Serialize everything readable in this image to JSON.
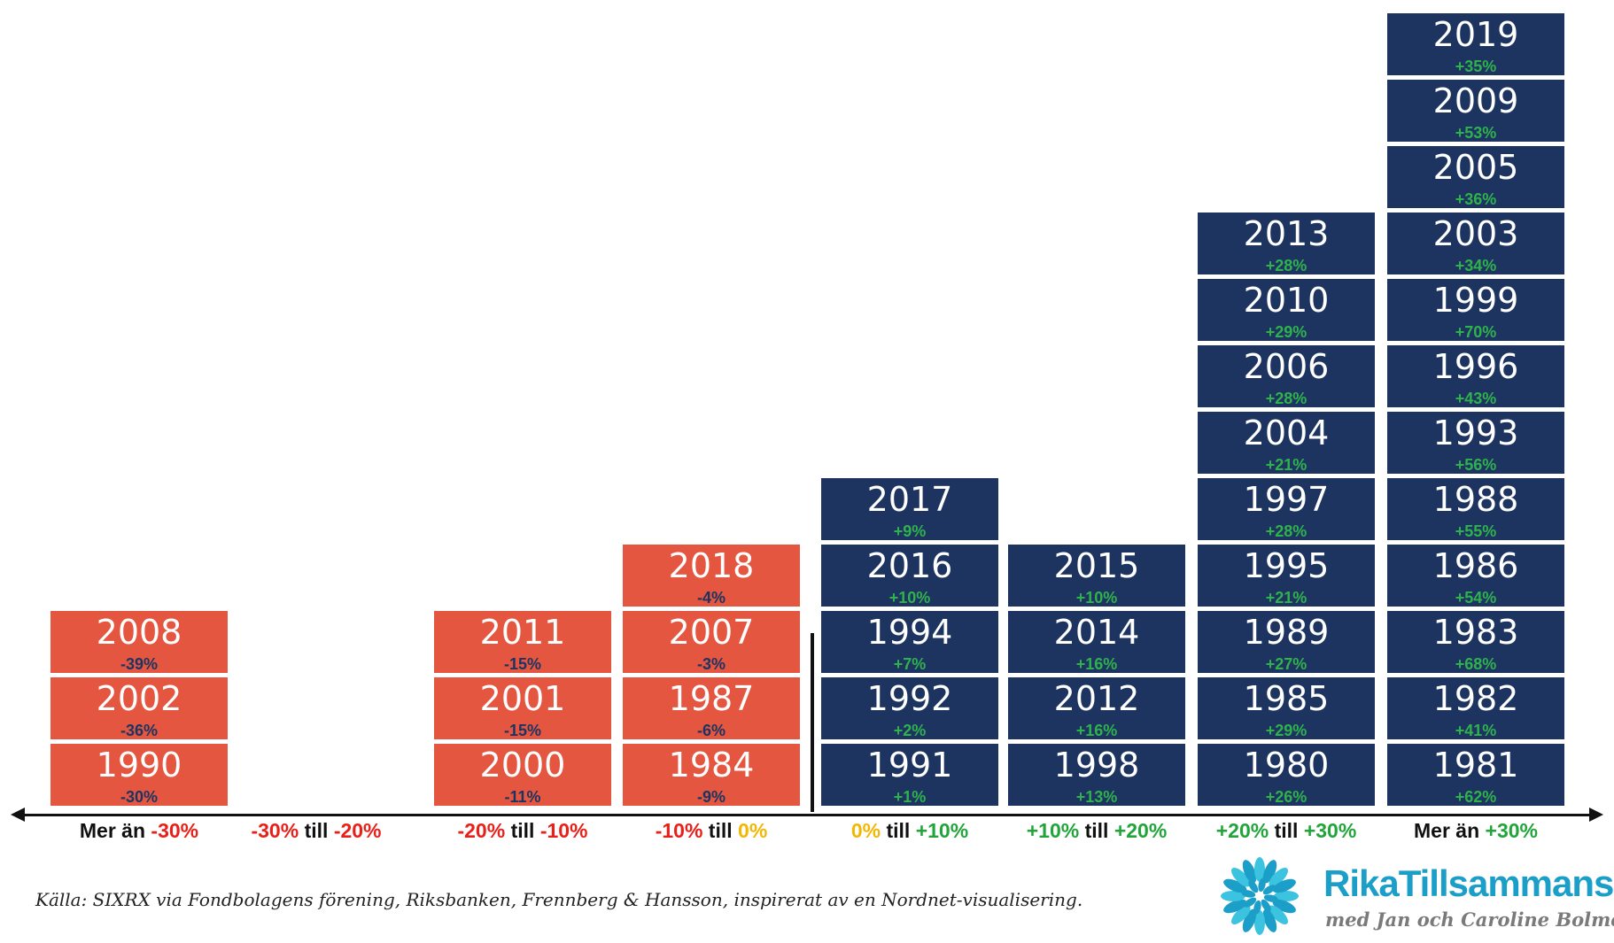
{
  "chart_data": {
    "type": "histogram-stack",
    "categories": [
      {
        "label": [
          {
            "t": "Mer än ",
            "c": "neutral"
          },
          {
            "t": "-30%",
            "c": "red"
          }
        ],
        "tone": "neg",
        "years": [
          {
            "year": "1990",
            "pct": "-30%"
          },
          {
            "year": "2002",
            "pct": "-36%"
          },
          {
            "year": "2008",
            "pct": "-39%"
          }
        ]
      },
      {
        "label": [
          {
            "t": "-30%",
            "c": "red"
          },
          {
            "t": " till ",
            "c": "neutral"
          },
          {
            "t": "-20%",
            "c": "red"
          }
        ],
        "tone": "neg",
        "years": []
      },
      {
        "label": [
          {
            "t": "-20%",
            "c": "red"
          },
          {
            "t": " till ",
            "c": "neutral"
          },
          {
            "t": "-10%",
            "c": "red"
          }
        ],
        "tone": "neg",
        "years": [
          {
            "year": "2000",
            "pct": "-11%"
          },
          {
            "year": "2001",
            "pct": "-15%"
          },
          {
            "year": "2011",
            "pct": "-15%"
          }
        ]
      },
      {
        "label": [
          {
            "t": "-10%",
            "c": "red"
          },
          {
            "t": " till ",
            "c": "neutral"
          },
          {
            "t": "0%",
            "c": "yellow"
          }
        ],
        "tone": "neg",
        "years": [
          {
            "year": "1984",
            "pct": "-9%"
          },
          {
            "year": "1987",
            "pct": "-6%"
          },
          {
            "year": "2007",
            "pct": "-3%"
          },
          {
            "year": "2018",
            "pct": "-4%"
          }
        ]
      },
      {
        "label": [
          {
            "t": "0%",
            "c": "yellow"
          },
          {
            "t": " till ",
            "c": "neutral"
          },
          {
            "t": "+10%",
            "c": "green"
          }
        ],
        "tone": "pos",
        "years": [
          {
            "year": "1991",
            "pct": "+1%"
          },
          {
            "year": "1992",
            "pct": "+2%"
          },
          {
            "year": "1994",
            "pct": "+7%"
          },
          {
            "year": "2016",
            "pct": "+10%"
          },
          {
            "year": "2017",
            "pct": "+9%"
          }
        ]
      },
      {
        "label": [
          {
            "t": "+10%",
            "c": "green"
          },
          {
            "t": " till ",
            "c": "neutral"
          },
          {
            "t": "+20%",
            "c": "green"
          }
        ],
        "tone": "pos",
        "years": [
          {
            "year": "1998",
            "pct": "+13%"
          },
          {
            "year": "2012",
            "pct": "+16%"
          },
          {
            "year": "2014",
            "pct": "+16%"
          },
          {
            "year": "2015",
            "pct": "+10%"
          }
        ]
      },
      {
        "label": [
          {
            "t": "+20%",
            "c": "green"
          },
          {
            "t": " till ",
            "c": "neutral"
          },
          {
            "t": "+30%",
            "c": "green"
          }
        ],
        "tone": "pos",
        "years": [
          {
            "year": "1980",
            "pct": "+26%"
          },
          {
            "year": "1985",
            "pct": "+29%"
          },
          {
            "year": "1989",
            "pct": "+27%"
          },
          {
            "year": "1995",
            "pct": "+21%"
          },
          {
            "year": "1997",
            "pct": "+28%"
          },
          {
            "year": "2004",
            "pct": "+21%"
          },
          {
            "year": "2006",
            "pct": "+28%"
          },
          {
            "year": "2010",
            "pct": "+29%"
          },
          {
            "year": "2013",
            "pct": "+28%"
          }
        ]
      },
      {
        "label": [
          {
            "t": "Mer än ",
            "c": "neutral"
          },
          {
            "t": "+30%",
            "c": "green"
          }
        ],
        "tone": "pos",
        "years": [
          {
            "year": "1981",
            "pct": "+62%"
          },
          {
            "year": "1982",
            "pct": "+41%"
          },
          {
            "year": "1983",
            "pct": "+68%"
          },
          {
            "year": "1986",
            "pct": "+54%"
          },
          {
            "year": "1988",
            "pct": "+55%"
          },
          {
            "year": "1993",
            "pct": "+56%"
          },
          {
            "year": "1996",
            "pct": "+43%"
          },
          {
            "year": "1999",
            "pct": "+70%"
          },
          {
            "year": "2003",
            "pct": "+34%"
          },
          {
            "year": "2005",
            "pct": "+36%"
          },
          {
            "year": "2009",
            "pct": "+53%"
          },
          {
            "year": "2019",
            "pct": "+35%"
          }
        ]
      }
    ]
  },
  "colors": {
    "negative_tile": "#e55641",
    "positive_tile": "#1d3461",
    "positive_text": "#2fb24c",
    "negative_text": "#1d3461"
  },
  "source_text": "Källa: SIXRX via Fondbolagens förening, Riksbanken, Frennberg & Hansson, inspirerat av en Nordnet-visualisering.",
  "brand": {
    "name": "RikaTillsammans",
    "tagline": "med Jan och Caroline Bolmeson",
    "icon": "starburst-logo-icon"
  }
}
